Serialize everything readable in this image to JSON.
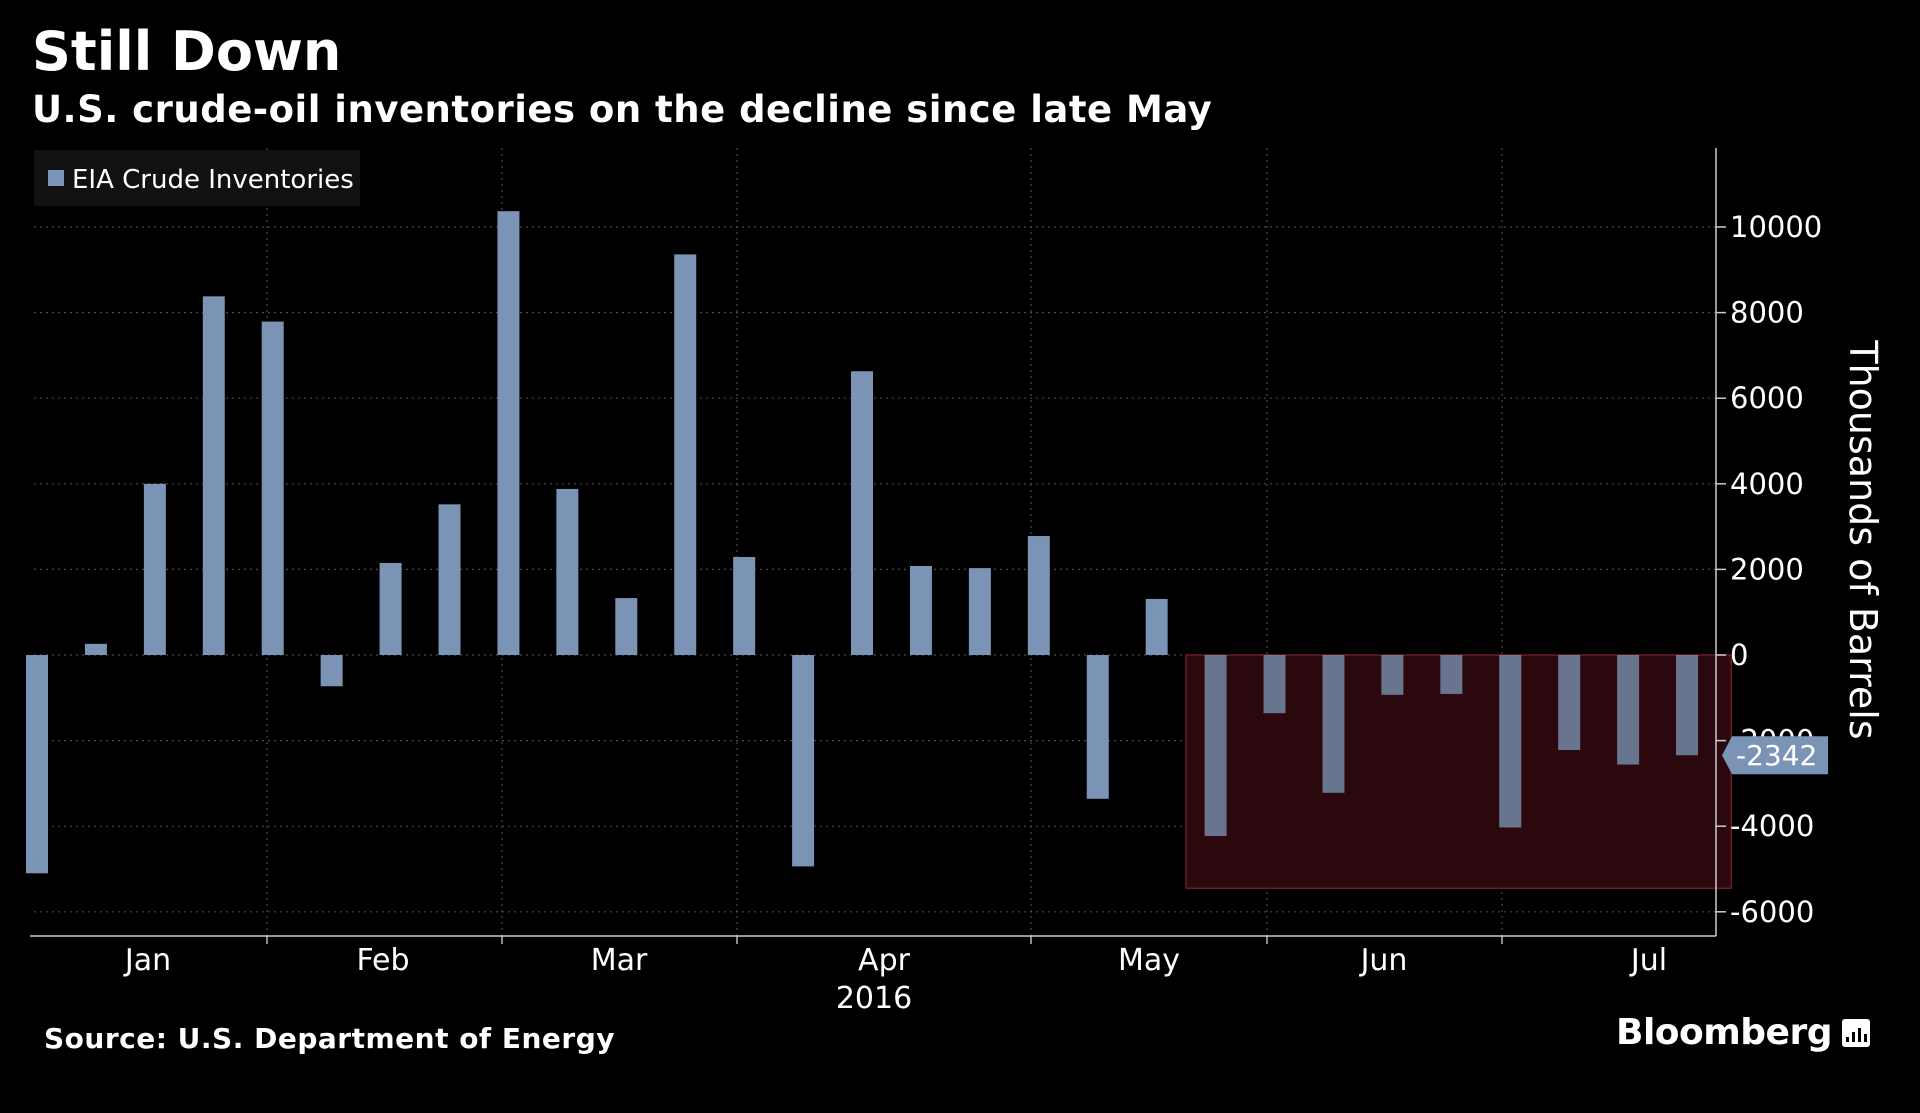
{
  "header": {
    "title": "Still Down",
    "subtitle": "U.S. crude-oil inventories on the decline since late May"
  },
  "footer": {
    "source": "Source: U.S. Department of Energy",
    "brand": "Bloomberg"
  },
  "colors": {
    "background": "#000000",
    "bar": "#7b93b5",
    "highlight_fill": "#2a080d",
    "highlight_stroke": "#6e1a22",
    "grid": "#4a4a4a",
    "text": "#ffffff"
  },
  "chart_data": {
    "type": "bar",
    "ylabel": "Thousands of Barrels",
    "ylim": [
      -6300,
      11800
    ],
    "yticks": [
      10000,
      8000,
      6000,
      4000,
      2000,
      0,
      -2000,
      -4000,
      -6000
    ],
    "x_month_labels": [
      "Jan",
      "Feb",
      "Mar",
      "Apr",
      "May",
      "Jun",
      "Jul"
    ],
    "x_year_label": "2016",
    "grid": true,
    "legend_position": "top-left",
    "series": [
      {
        "name": "EIA Crude Inventories",
        "values": [
          -5100,
          260,
          4000,
          8380,
          7790,
          -730,
          2150,
          3520,
          10370,
          3880,
          1330,
          9360,
          2290,
          -4940,
          6630,
          2080,
          2030,
          2780,
          -3360,
          1310,
          -4230,
          -1360,
          -3220,
          -930,
          -910,
          -4030,
          -2220,
          -2560,
          -2342
        ]
      }
    ],
    "highlight": {
      "label": "decline since late May",
      "from_index": 19.5,
      "to_index": 28.75,
      "y_range": [
        -5450,
        0
      ]
    },
    "last_value_label": "-2342"
  }
}
